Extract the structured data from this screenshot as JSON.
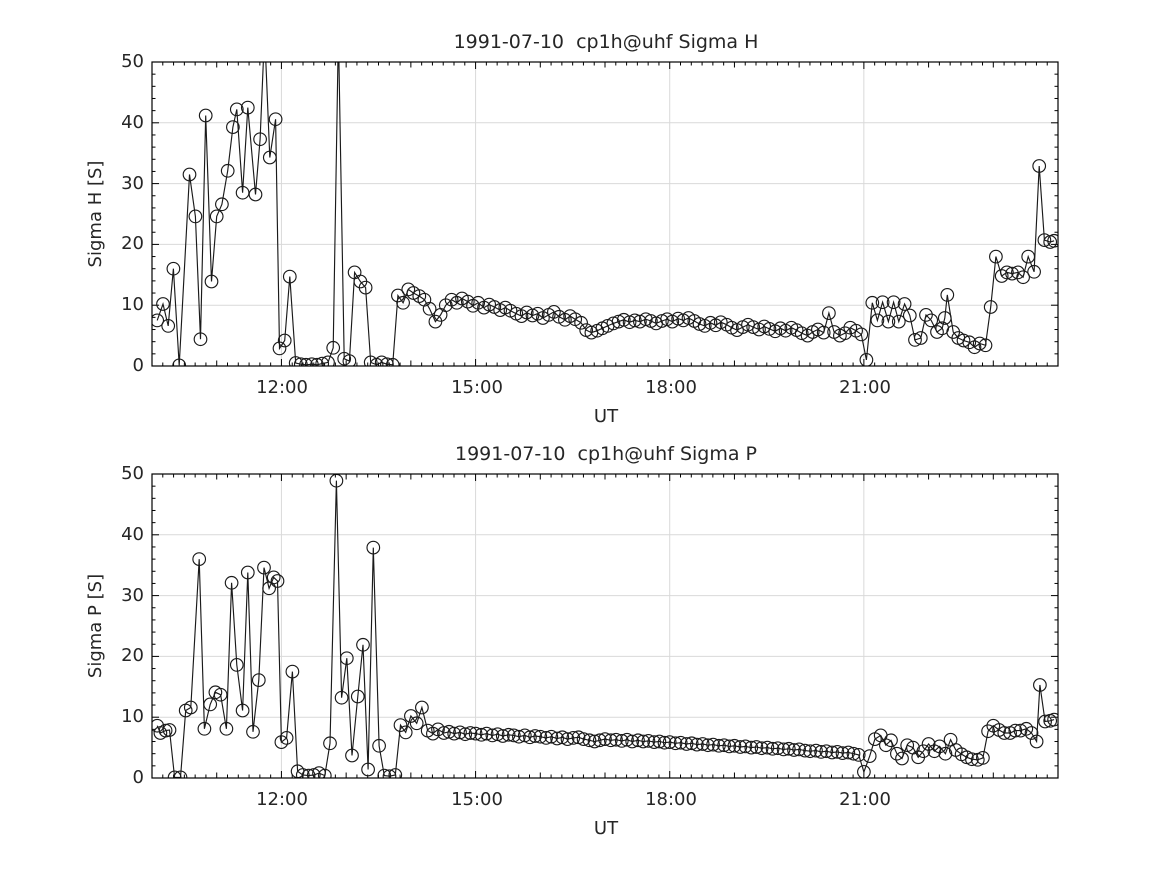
{
  "figure": {
    "background": "#ffffff",
    "grid_color": "#d9d9d9",
    "spine_color": "#000000",
    "series_color": "#1a1a1a",
    "tick_color": "#262626"
  },
  "chart_data": [
    {
      "type": "line",
      "title": "1991-07-10  cp1h@uhf Sigma H",
      "xlabel": "UT",
      "ylabel": "Sigma H [S]",
      "xlim": [
        10,
        24
      ],
      "ylim": [
        0,
        50
      ],
      "grid": true,
      "legend": "none",
      "marker": "open-circle",
      "x_tick_hours": [
        12,
        15,
        18,
        21
      ],
      "x_tick_labels": [
        "12:00",
        "15:00",
        "18:00",
        "21:00"
      ],
      "y_tick_values": [
        0,
        10,
        20,
        30,
        40,
        50
      ],
      "y_tick_labels": [
        "0",
        "10",
        "20",
        "30",
        "40",
        "50"
      ],
      "x_minor_step_hours": 0.16667,
      "y_minor_step": 2,
      "note": "values of 55 are off-scale spikes clipped at top of axes",
      "points": [
        [
          10.08,
          7.5
        ],
        [
          10.17,
          10.2
        ],
        [
          10.25,
          6.6
        ],
        [
          10.33,
          16.0
        ],
        [
          10.42,
          0.1
        ],
        [
          10.58,
          31.5
        ],
        [
          10.67,
          24.6
        ],
        [
          10.75,
          4.4
        ],
        [
          10.83,
          41.2
        ],
        [
          10.92,
          13.9
        ],
        [
          11.0,
          24.6
        ],
        [
          11.08,
          26.6
        ],
        [
          11.17,
          32.1
        ],
        [
          11.25,
          39.3
        ],
        [
          11.31,
          42.2
        ],
        [
          11.4,
          28.5
        ],
        [
          11.48,
          42.5
        ],
        [
          11.6,
          28.2
        ],
        [
          11.67,
          37.3
        ],
        [
          11.74,
          55
        ],
        [
          11.82,
          34.3
        ],
        [
          11.91,
          40.6
        ],
        [
          11.97,
          2.9
        ],
        [
          12.05,
          4.2
        ],
        [
          12.13,
          14.7
        ],
        [
          12.22,
          0.5
        ],
        [
          12.3,
          0.3
        ],
        [
          12.38,
          0.2
        ],
        [
          12.47,
          0.3
        ],
        [
          12.55,
          0.2
        ],
        [
          12.63,
          0.4
        ],
        [
          12.72,
          0.6
        ],
        [
          12.8,
          3.0
        ],
        [
          12.88,
          55
        ],
        [
          12.97,
          1.2
        ],
        [
          13.05,
          0.8
        ],
        [
          13.13,
          15.4
        ],
        [
          13.22,
          13.9
        ],
        [
          13.3,
          12.9
        ],
        [
          13.38,
          0.6
        ],
        [
          13.47,
          0.2
        ],
        [
          13.55,
          0.6
        ],
        [
          13.63,
          0.3
        ],
        [
          13.72,
          0.2
        ],
        [
          13.8,
          11.6
        ],
        [
          13.88,
          10.4
        ],
        [
          13.96,
          12.6
        ],
        [
          14.04,
          12.0
        ],
        [
          14.13,
          11.5
        ],
        [
          14.21,
          10.9
        ],
        [
          14.29,
          9.4
        ],
        [
          14.38,
          7.3
        ],
        [
          14.46,
          8.4
        ],
        [
          14.54,
          10.0
        ],
        [
          14.63,
          10.9
        ],
        [
          14.71,
          10.4
        ],
        [
          14.79,
          11.1
        ],
        [
          14.88,
          10.6
        ],
        [
          14.96,
          9.9
        ],
        [
          15.04,
          10.4
        ],
        [
          15.13,
          9.6
        ],
        [
          15.21,
          10.1
        ],
        [
          15.29,
          9.7
        ],
        [
          15.38,
          9.2
        ],
        [
          15.46,
          9.6
        ],
        [
          15.54,
          9.1
        ],
        [
          15.63,
          8.6
        ],
        [
          15.71,
          8.2
        ],
        [
          15.79,
          8.8
        ],
        [
          15.88,
          8.3
        ],
        [
          15.96,
          8.6
        ],
        [
          16.04,
          7.9
        ],
        [
          16.13,
          8.4
        ],
        [
          16.21,
          8.9
        ],
        [
          16.29,
          8.1
        ],
        [
          16.38,
          7.6
        ],
        [
          16.46,
          8.2
        ],
        [
          16.54,
          7.7
        ],
        [
          16.63,
          7.1
        ],
        [
          16.71,
          5.9
        ],
        [
          16.79,
          5.5
        ],
        [
          16.88,
          5.8
        ],
        [
          16.96,
          6.2
        ],
        [
          17.04,
          6.6
        ],
        [
          17.13,
          7.0
        ],
        [
          17.21,
          7.3
        ],
        [
          17.29,
          7.6
        ],
        [
          17.38,
          7.2
        ],
        [
          17.46,
          7.5
        ],
        [
          17.54,
          7.3
        ],
        [
          17.63,
          7.7
        ],
        [
          17.71,
          7.4
        ],
        [
          17.79,
          7.0
        ],
        [
          17.88,
          7.4
        ],
        [
          17.96,
          7.7
        ],
        [
          18.04,
          7.3
        ],
        [
          18.13,
          7.8
        ],
        [
          18.21,
          7.5
        ],
        [
          18.29,
          7.9
        ],
        [
          18.38,
          7.4
        ],
        [
          18.46,
          6.9
        ],
        [
          18.54,
          6.6
        ],
        [
          18.63,
          7.1
        ],
        [
          18.71,
          6.7
        ],
        [
          18.79,
          7.2
        ],
        [
          18.88,
          6.8
        ],
        [
          18.96,
          6.3
        ],
        [
          19.04,
          5.9
        ],
        [
          19.13,
          6.4
        ],
        [
          19.21,
          6.8
        ],
        [
          19.29,
          6.4
        ],
        [
          19.38,
          6.0
        ],
        [
          19.46,
          6.5
        ],
        [
          19.54,
          6.1
        ],
        [
          19.63,
          5.7
        ],
        [
          19.71,
          6.2
        ],
        [
          19.79,
          5.8
        ],
        [
          19.88,
          6.3
        ],
        [
          19.96,
          5.9
        ],
        [
          20.04,
          5.4
        ],
        [
          20.13,
          5.0
        ],
        [
          20.21,
          5.6
        ],
        [
          20.29,
          6.0
        ],
        [
          20.38,
          5.5
        ],
        [
          20.46,
          8.7
        ],
        [
          20.54,
          5.6
        ],
        [
          20.63,
          5.0
        ],
        [
          20.71,
          5.4
        ],
        [
          20.79,
          6.3
        ],
        [
          20.88,
          5.8
        ],
        [
          20.96,
          5.2
        ],
        [
          21.04,
          1.0
        ],
        [
          21.13,
          10.4
        ],
        [
          21.21,
          7.5
        ],
        [
          21.29,
          10.5
        ],
        [
          21.38,
          7.3
        ],
        [
          21.46,
          10.5
        ],
        [
          21.54,
          7.3
        ],
        [
          21.63,
          10.2
        ],
        [
          21.71,
          8.3
        ],
        [
          21.79,
          4.3
        ],
        [
          21.88,
          4.6
        ],
        [
          21.96,
          8.4
        ],
        [
          22.04,
          7.5
        ],
        [
          22.13,
          5.6
        ],
        [
          22.21,
          6.2
        ],
        [
          22.25,
          7.9
        ],
        [
          22.29,
          11.7
        ],
        [
          22.38,
          5.6
        ],
        [
          22.46,
          4.6
        ],
        [
          22.54,
          4.2
        ],
        [
          22.63,
          3.9
        ],
        [
          22.71,
          3.1
        ],
        [
          22.79,
          3.7
        ],
        [
          22.88,
          3.4
        ],
        [
          22.96,
          9.7
        ],
        [
          23.04,
          18.0
        ],
        [
          23.13,
          14.8
        ],
        [
          23.21,
          15.4
        ],
        [
          23.29,
          15.2
        ],
        [
          23.38,
          15.4
        ],
        [
          23.46,
          14.6
        ],
        [
          23.54,
          18.0
        ],
        [
          23.63,
          15.5
        ],
        [
          23.71,
          32.9
        ],
        [
          23.79,
          20.7
        ],
        [
          23.88,
          20.4
        ],
        [
          23.94,
          20.6
        ]
      ]
    },
    {
      "type": "line",
      "title": "1991-07-10  cp1h@uhf Sigma P",
      "xlabel": "UT",
      "ylabel": "Sigma P [S]",
      "xlim": [
        10,
        24
      ],
      "ylim": [
        0,
        50
      ],
      "grid": true,
      "legend": "none",
      "marker": "open-circle",
      "x_tick_hours": [
        12,
        15,
        18,
        21
      ],
      "x_tick_labels": [
        "12:00",
        "15:00",
        "18:00",
        "21:00"
      ],
      "y_tick_values": [
        0,
        10,
        20,
        30,
        40,
        50
      ],
      "y_tick_labels": [
        "0",
        "10",
        "20",
        "30",
        "40",
        "50"
      ],
      "x_minor_step_hours": 0.16667,
      "y_minor_step": 2,
      "note": "",
      "points": [
        [
          10.08,
          8.6
        ],
        [
          10.13,
          7.4
        ],
        [
          10.21,
          7.8
        ],
        [
          10.27,
          7.9
        ],
        [
          10.35,
          0.1
        ],
        [
          10.44,
          0.1
        ],
        [
          10.52,
          11.1
        ],
        [
          10.6,
          11.6
        ],
        [
          10.73,
          36.0
        ],
        [
          10.81,
          8.1
        ],
        [
          10.9,
          12.1
        ],
        [
          10.98,
          14.1
        ],
        [
          11.06,
          13.7
        ],
        [
          11.15,
          8.1
        ],
        [
          11.23,
          32.1
        ],
        [
          11.31,
          18.6
        ],
        [
          11.4,
          11.1
        ],
        [
          11.48,
          33.8
        ],
        [
          11.56,
          7.6
        ],
        [
          11.65,
          16.1
        ],
        [
          11.73,
          34.6
        ],
        [
          11.81,
          31.2
        ],
        [
          11.88,
          33.0
        ],
        [
          11.94,
          32.4
        ],
        [
          12.0,
          5.9
        ],
        [
          12.08,
          6.6
        ],
        [
          12.17,
          17.5
        ],
        [
          12.25,
          1.1
        ],
        [
          12.33,
          0.5
        ],
        [
          12.42,
          0.4
        ],
        [
          12.5,
          0.5
        ],
        [
          12.58,
          0.8
        ],
        [
          12.67,
          0.4
        ],
        [
          12.75,
          5.7
        ],
        [
          12.85,
          48.9
        ],
        [
          12.93,
          13.2
        ],
        [
          13.01,
          19.7
        ],
        [
          13.09,
          3.7
        ],
        [
          13.18,
          13.4
        ],
        [
          13.26,
          21.9
        ],
        [
          13.34,
          1.4
        ],
        [
          13.42,
          37.9
        ],
        [
          13.51,
          5.3
        ],
        [
          13.59,
          0.4
        ],
        [
          13.67,
          0.3
        ],
        [
          13.76,
          0.5
        ],
        [
          13.84,
          8.7
        ],
        [
          13.92,
          7.5
        ],
        [
          14.0,
          10.2
        ],
        [
          14.09,
          9.0
        ],
        [
          14.17,
          11.6
        ],
        [
          14.26,
          7.8
        ],
        [
          14.34,
          7.3
        ],
        [
          14.42,
          8.0
        ],
        [
          14.51,
          7.4
        ],
        [
          14.59,
          7.6
        ],
        [
          14.67,
          7.3
        ],
        [
          14.76,
          7.5
        ],
        [
          14.84,
          7.2
        ],
        [
          14.92,
          7.4
        ],
        [
          15.0,
          7.3
        ],
        [
          15.09,
          7.1
        ],
        [
          15.17,
          7.3
        ],
        [
          15.26,
          7.0
        ],
        [
          15.34,
          7.2
        ],
        [
          15.42,
          6.9
        ],
        [
          15.51,
          7.1
        ],
        [
          15.59,
          7.0
        ],
        [
          15.67,
          6.8
        ],
        [
          15.76,
          7.0
        ],
        [
          15.84,
          6.7
        ],
        [
          15.92,
          6.9
        ],
        [
          16.0,
          6.8
        ],
        [
          16.09,
          6.6
        ],
        [
          16.17,
          6.8
        ],
        [
          16.26,
          6.5
        ],
        [
          16.34,
          6.7
        ],
        [
          16.42,
          6.4
        ],
        [
          16.51,
          6.6
        ],
        [
          16.59,
          6.7
        ],
        [
          16.67,
          6.4
        ],
        [
          16.76,
          6.2
        ],
        [
          16.84,
          6.0
        ],
        [
          16.92,
          6.2
        ],
        [
          17.0,
          6.4
        ],
        [
          17.09,
          6.2
        ],
        [
          17.17,
          6.3
        ],
        [
          17.26,
          6.1
        ],
        [
          17.34,
          6.3
        ],
        [
          17.42,
          6.0
        ],
        [
          17.51,
          6.2
        ],
        [
          17.59,
          6.0
        ],
        [
          17.67,
          6.1
        ],
        [
          17.76,
          5.9
        ],
        [
          17.84,
          6.0
        ],
        [
          17.92,
          5.8
        ],
        [
          18.0,
          5.9
        ],
        [
          18.09,
          5.7
        ],
        [
          18.17,
          5.8
        ],
        [
          18.26,
          5.6
        ],
        [
          18.34,
          5.7
        ],
        [
          18.42,
          5.5
        ],
        [
          18.51,
          5.6
        ],
        [
          18.59,
          5.4
        ],
        [
          18.67,
          5.5
        ],
        [
          18.76,
          5.3
        ],
        [
          18.84,
          5.4
        ],
        [
          18.92,
          5.2
        ],
        [
          19.0,
          5.3
        ],
        [
          19.09,
          5.1
        ],
        [
          19.17,
          5.2
        ],
        [
          19.26,
          5.0
        ],
        [
          19.34,
          5.1
        ],
        [
          19.42,
          4.9
        ],
        [
          19.51,
          5.0
        ],
        [
          19.59,
          4.8
        ],
        [
          19.67,
          4.9
        ],
        [
          19.76,
          4.7
        ],
        [
          19.84,
          4.8
        ],
        [
          19.92,
          4.6
        ],
        [
          20.0,
          4.7
        ],
        [
          20.09,
          4.5
        ],
        [
          20.17,
          4.4
        ],
        [
          20.26,
          4.5
        ],
        [
          20.34,
          4.3
        ],
        [
          20.42,
          4.4
        ],
        [
          20.51,
          4.2
        ],
        [
          20.59,
          4.3
        ],
        [
          20.67,
          4.1
        ],
        [
          20.76,
          4.2
        ],
        [
          20.84,
          4.0
        ],
        [
          20.92,
          3.8
        ],
        [
          21.0,
          1.0
        ],
        [
          21.09,
          3.6
        ],
        [
          21.17,
          6.4
        ],
        [
          21.26,
          7.0
        ],
        [
          21.34,
          5.4
        ],
        [
          21.42,
          6.2
        ],
        [
          21.51,
          4.0
        ],
        [
          21.59,
          3.2
        ],
        [
          21.67,
          5.4
        ],
        [
          21.76,
          5.0
        ],
        [
          21.84,
          3.4
        ],
        [
          21.92,
          4.4
        ],
        [
          22.0,
          5.6
        ],
        [
          22.09,
          4.4
        ],
        [
          22.17,
          5.2
        ],
        [
          22.26,
          4.0
        ],
        [
          22.34,
          6.3
        ],
        [
          22.42,
          4.6
        ],
        [
          22.51,
          3.9
        ],
        [
          22.59,
          3.4
        ],
        [
          22.67,
          3.1
        ],
        [
          22.76,
          3.0
        ],
        [
          22.84,
          3.3
        ],
        [
          22.92,
          7.7
        ],
        [
          23.0,
          8.6
        ],
        [
          23.09,
          7.9
        ],
        [
          23.17,
          7.4
        ],
        [
          23.26,
          7.4
        ],
        [
          23.34,
          7.8
        ],
        [
          23.42,
          7.8
        ],
        [
          23.51,
          8.1
        ],
        [
          23.59,
          7.4
        ],
        [
          23.67,
          6.0
        ],
        [
          23.72,
          15.3
        ],
        [
          23.8,
          9.3
        ],
        [
          23.88,
          9.4
        ],
        [
          23.94,
          9.6
        ]
      ]
    }
  ]
}
